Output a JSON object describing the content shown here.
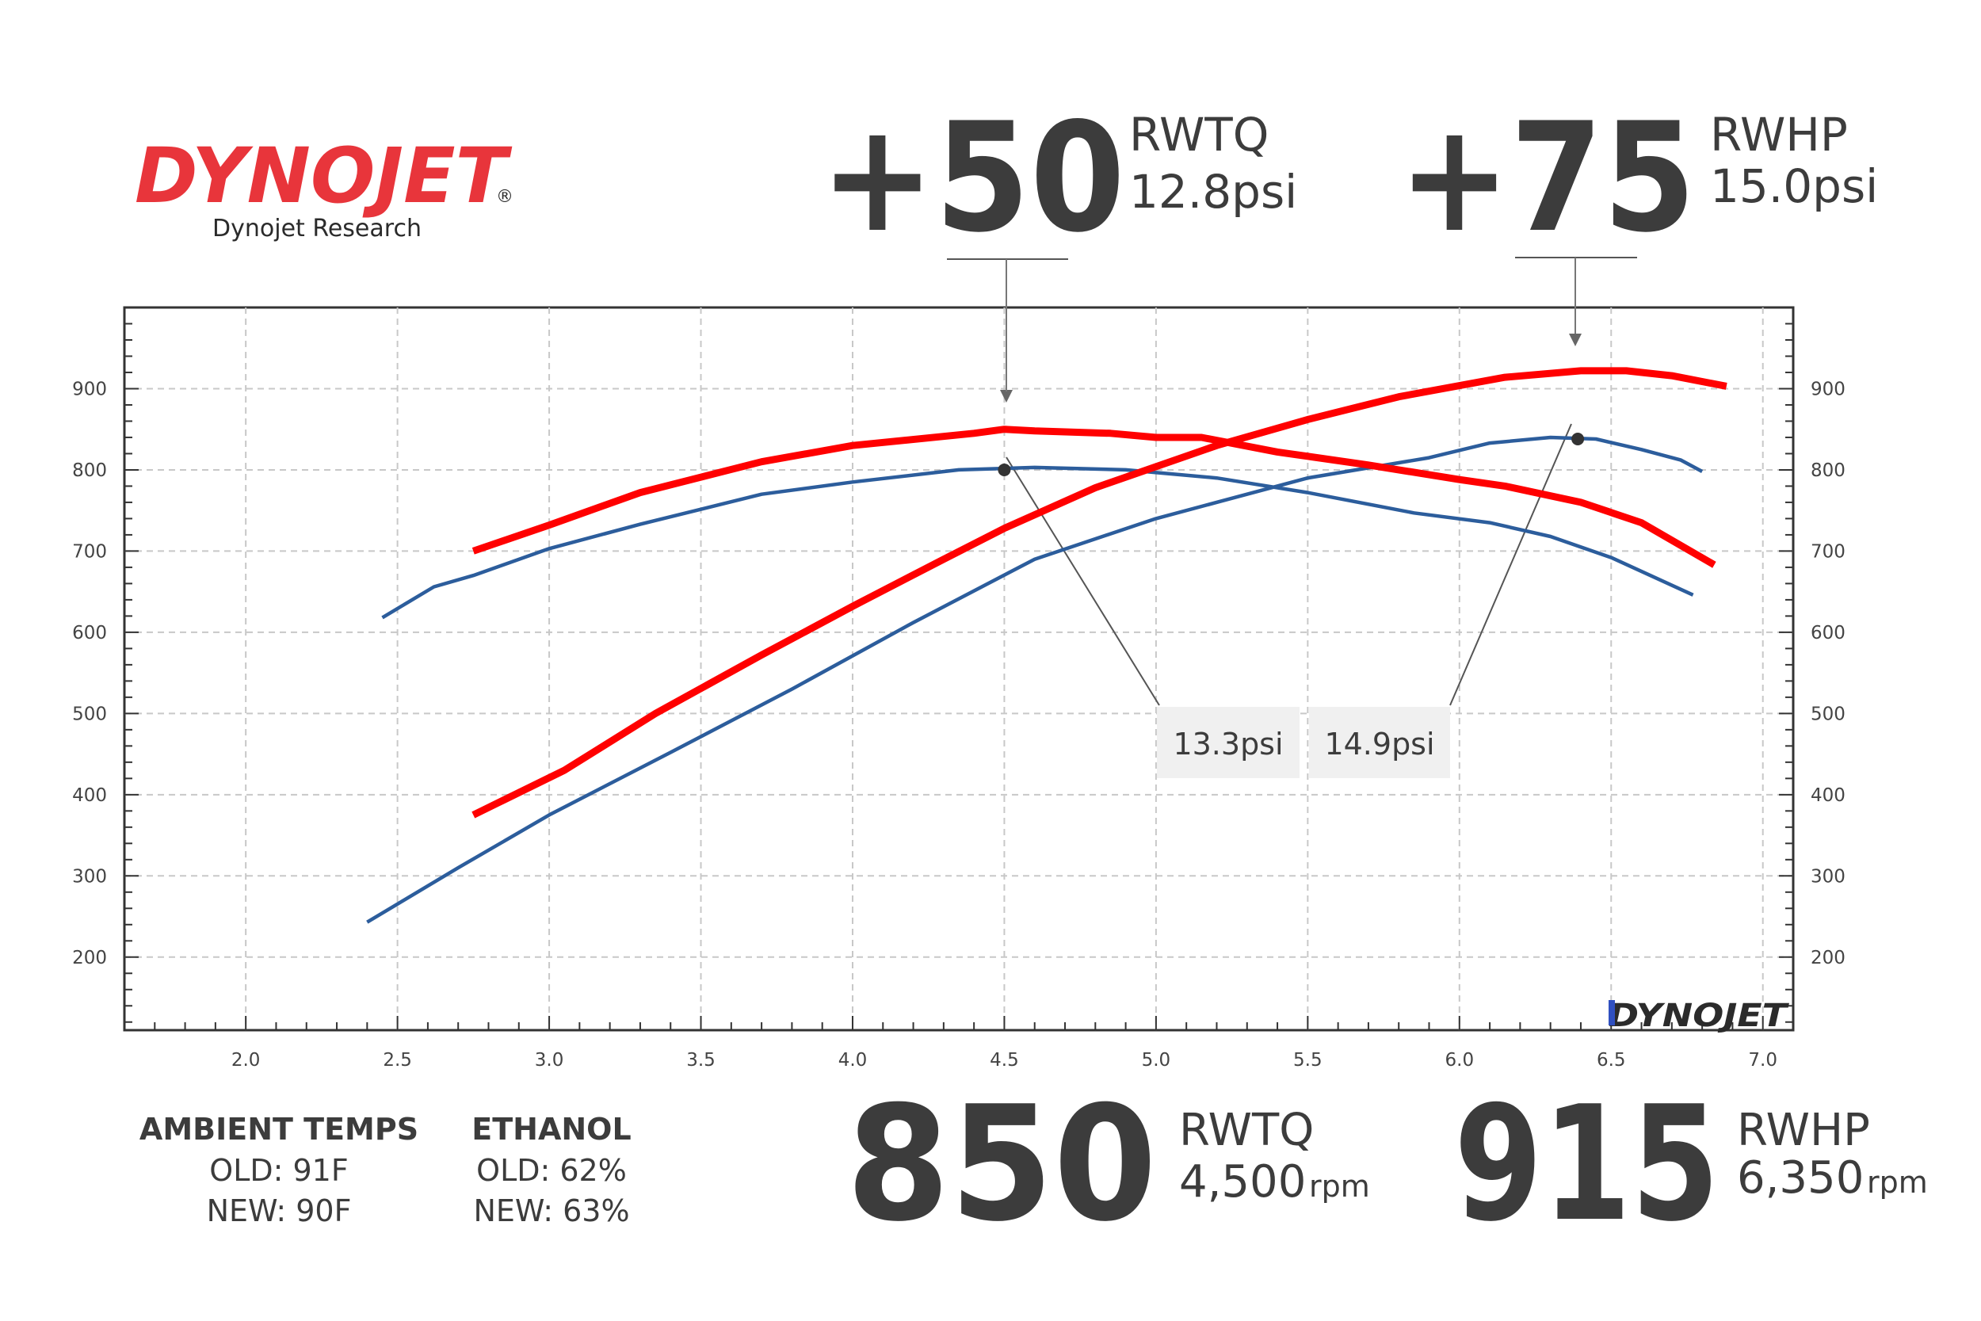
{
  "brand": {
    "logo_text": "DYNOJET",
    "logo_registered": "®",
    "subtitle": "Dynojet Research",
    "watermark_text": "DYNOJET"
  },
  "callouts": {
    "torque_gain": {
      "value": "+50",
      "unit": "RWTQ",
      "boost": "12.8psi"
    },
    "hp_gain": {
      "value": "+75",
      "unit": "RWHP",
      "boost": "15.0psi"
    },
    "old_torque_boost": "13.3psi",
    "old_hp_boost": "14.9psi"
  },
  "peaks": {
    "torque": {
      "value": "850",
      "unit": "RWTQ",
      "rpm_number": "4,500",
      "rpm_unit": "rpm"
    },
    "hp": {
      "value": "915",
      "unit": "RWHP",
      "rpm_number": "6,350",
      "rpm_unit": "rpm"
    }
  },
  "conditions": {
    "ambient": {
      "heading": "AMBIENT TEMPS",
      "old": "OLD: 91F",
      "new": "NEW: 90F"
    },
    "ethanol": {
      "heading": "ETHANOL",
      "old": "OLD: 62%",
      "new": "NEW: 63%"
    }
  },
  "colors": {
    "new_run": "#ff0000",
    "old_run": "#2c5d9c",
    "grid": "#c8c8c8",
    "logo_red": "#e8353b",
    "logo_dark": "#2b2b2b",
    "label_box": "#f0f0f0",
    "leader": "#555555"
  },
  "chart_data": {
    "type": "line",
    "title": "",
    "xlabel": "",
    "ylabel": "",
    "xlim": [
      1.6,
      7.1
    ],
    "ylim": [
      110,
      1000
    ],
    "grid": true,
    "x_ticks": [
      2.0,
      2.5,
      3.0,
      3.5,
      4.0,
      4.5,
      5.0,
      5.5,
      6.0,
      6.5,
      7.0
    ],
    "x_tick_labels": [
      "2.0",
      "2.5",
      "3.0",
      "3.5",
      "4.0",
      "4.5",
      "5.0",
      "5.5",
      "6.0",
      "6.5",
      "7.0"
    ],
    "y_ticks": [
      200,
      300,
      400,
      500,
      600,
      700,
      800,
      900
    ],
    "y_tick_labels": [
      "200",
      "300",
      "400",
      "500",
      "600",
      "700",
      "800",
      "900"
    ],
    "series": [
      {
        "key": "new_tq",
        "x": [
          2.75,
          3.0,
          3.3,
          3.7,
          4.0,
          4.4,
          4.5,
          4.6,
          4.85,
          5.0,
          5.15,
          5.4,
          5.7,
          6.0,
          6.15,
          6.4,
          6.6,
          6.84
        ],
        "y": [
          700,
          732,
          772,
          810,
          830,
          845,
          850,
          848,
          845,
          840,
          840,
          822,
          806,
          788,
          780,
          760,
          735,
          683
        ]
      },
      {
        "key": "new_hp",
        "x": [
          2.75,
          3.05,
          3.35,
          3.7,
          4.0,
          4.3,
          4.5,
          4.8,
          5.2,
          5.5,
          5.8,
          6.15,
          6.4,
          6.55,
          6.7,
          6.88
        ],
        "y": [
          375,
          430,
          500,
          572,
          632,
          690,
          728,
          778,
          830,
          862,
          890,
          914,
          922,
          922,
          916,
          903
        ]
      },
      {
        "key": "old_tq",
        "x": [
          2.45,
          2.62,
          2.75,
          3.0,
          3.3,
          3.7,
          4.0,
          4.35,
          4.6,
          4.9,
          5.2,
          5.5,
          5.85,
          6.1,
          6.3,
          6.5,
          6.77
        ],
        "y": [
          618,
          656,
          670,
          703,
          733,
          770,
          785,
          800,
          803,
          800,
          790,
          772,
          747,
          735,
          718,
          692,
          646
        ]
      },
      {
        "key": "old_hp",
        "x": [
          2.4,
          2.7,
          3.0,
          3.4,
          3.8,
          4.2,
          4.6,
          5.0,
          5.5,
          5.9,
          6.1,
          6.3,
          6.45,
          6.6,
          6.73,
          6.8
        ],
        "y": [
          243,
          310,
          375,
          452,
          530,
          612,
          690,
          740,
          790,
          815,
          833,
          840,
          838,
          825,
          812,
          798
        ]
      }
    ],
    "markers": [
      {
        "x": 4.5,
        "y": 800
      },
      {
        "x": 6.39,
        "y": 838
      }
    ]
  }
}
